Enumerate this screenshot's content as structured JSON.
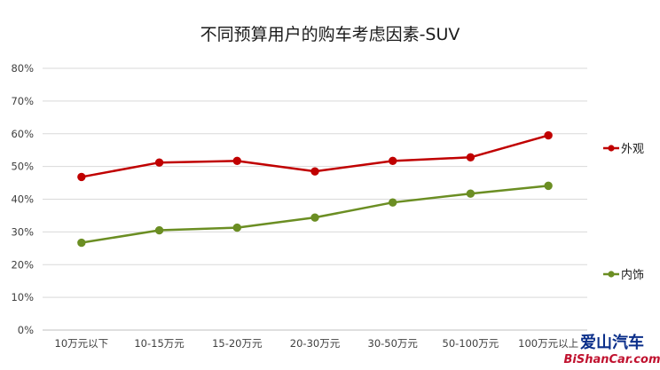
{
  "chart_data": {
    "type": "line",
    "title": "不同预算用户的购车考虑因素-SUV",
    "categories": [
      "10万元以下",
      "10-15万元",
      "15-20万元",
      "20-30万元",
      "30-50万元",
      "50-100万元",
      "100万元以上"
    ],
    "series": [
      {
        "name": "外观",
        "color": "#c00000",
        "values": [
          46.8,
          51.2,
          51.7,
          48.5,
          51.7,
          52.8,
          59.5
        ]
      },
      {
        "name": "内饰",
        "color": "#6b8e23",
        "values": [
          26.7,
          30.5,
          31.3,
          34.4,
          39.0,
          41.7,
          44.1
        ]
      }
    ],
    "ylim": [
      0,
      80
    ],
    "yticks": [
      0,
      10,
      20,
      30,
      40,
      50,
      60,
      70,
      80
    ],
    "ytick_labels": [
      "0%",
      "10%",
      "20%",
      "30%",
      "40%",
      "50%",
      "60%",
      "70%",
      "80%"
    ],
    "grid": true,
    "legend": "right"
  },
  "watermark": {
    "top_text": "爱山汽车",
    "bottom_text": "BiShanCar.com"
  }
}
